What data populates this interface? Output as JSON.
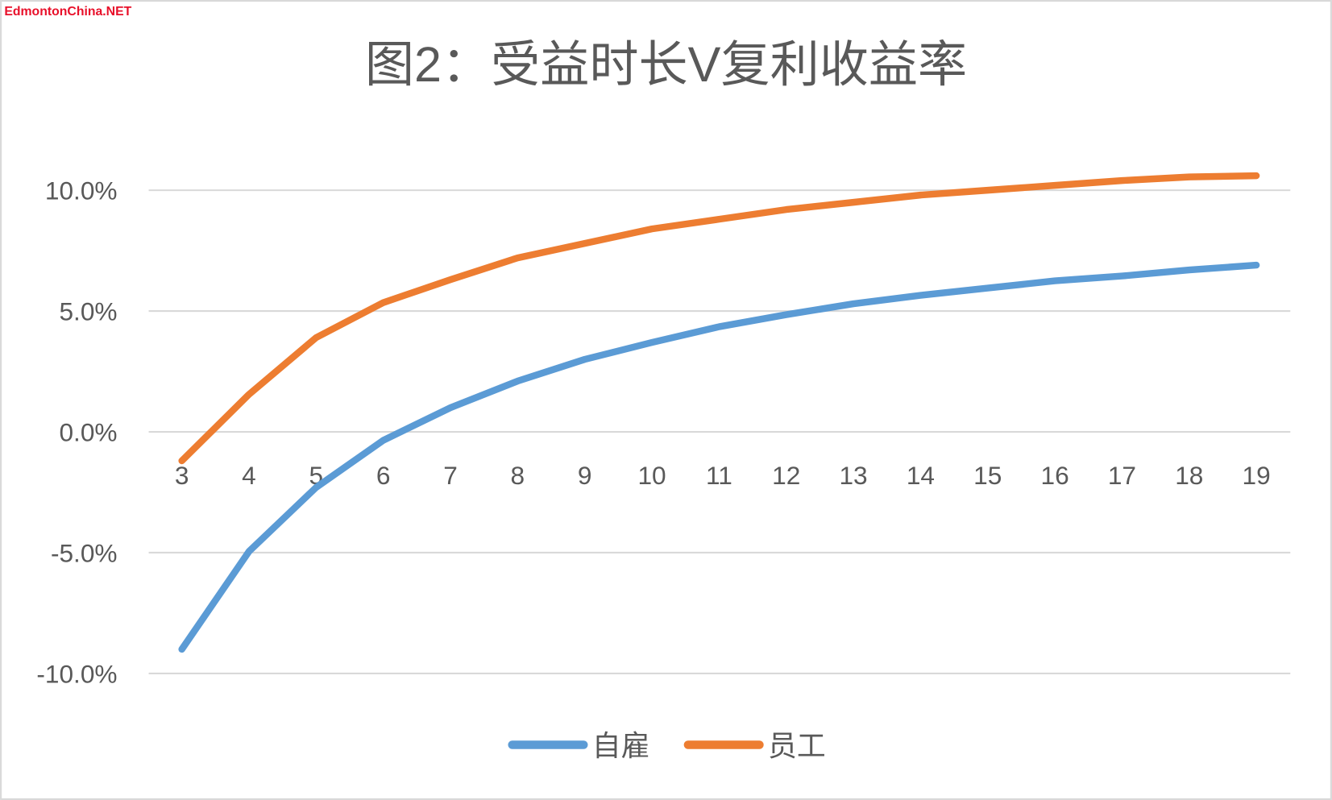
{
  "watermark": "EdmontonChina.NET",
  "chart_data": {
    "type": "line",
    "title": "图2：受益时长V复利收益率",
    "xlabel": "",
    "ylabel": "",
    "x": [
      3,
      4,
      5,
      6,
      7,
      8,
      9,
      10,
      11,
      12,
      13,
      14,
      15,
      16,
      17,
      18,
      19
    ],
    "ylim": [
      -10,
      10
    ],
    "yticks": [
      "-10.0%",
      "-5.0%",
      "0.0%",
      "5.0%",
      "10.0%"
    ],
    "ytick_values": [
      -10,
      -5,
      0,
      5,
      10
    ],
    "grid": true,
    "legend_position": "bottom",
    "series": [
      {
        "name": "自雇",
        "color": "#5b9bd5",
        "values": [
          -9.0,
          -4.95,
          -2.3,
          -0.35,
          1.0,
          2.1,
          3.0,
          3.7,
          4.35,
          4.85,
          5.3,
          5.65,
          5.95,
          6.25,
          6.45,
          6.7,
          6.9
        ]
      },
      {
        "name": "员工",
        "color": "#ed7d31",
        "values": [
          -1.2,
          1.55,
          3.9,
          5.35,
          6.3,
          7.2,
          7.8,
          8.4,
          8.8,
          9.2,
          9.5,
          9.8,
          10.0,
          10.2,
          10.4,
          10.55,
          10.6
        ]
      }
    ]
  }
}
